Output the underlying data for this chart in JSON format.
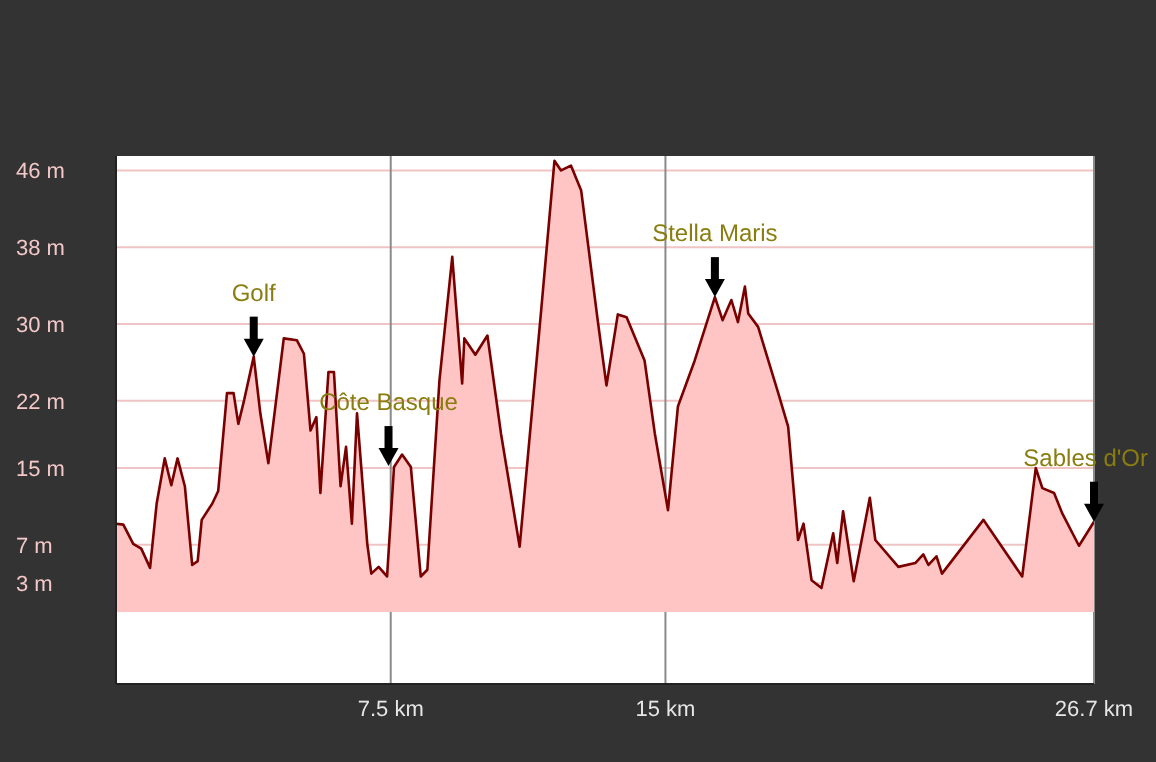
{
  "chart_data": {
    "type": "area",
    "xlim": [
      0,
      26.7
    ],
    "ylim": [
      -7.5,
      47.5
    ],
    "xticks": [
      {
        "value": 7.5,
        "label": "7.5 km"
      },
      {
        "value": 15,
        "label": "15 km"
      },
      {
        "value": 26.7,
        "label": "26.7 km"
      }
    ],
    "yticks": [
      {
        "value": 46,
        "label": "46 m"
      },
      {
        "value": 38,
        "label": "38 m"
      },
      {
        "value": 30,
        "label": "30 m"
      },
      {
        "value": 22,
        "label": "22 m"
      },
      {
        "value": 15,
        "label": "15 m"
      },
      {
        "value": 7,
        "label": "7 m"
      },
      {
        "value": 3,
        "label": "3 m"
      }
    ],
    "grid": true,
    "x": [
      0,
      0.2,
      0.47,
      0.69,
      0.93,
      1.11,
      1.33,
      1.51,
      1.68,
      1.88,
      2.08,
      2.23,
      2.34,
      2.63,
      2.79,
      3.03,
      3.21,
      3.34,
      3.5,
      3.76,
      3.94,
      4.16,
      4.58,
      4.94,
      5.13,
      5.31,
      5.47,
      5.58,
      5.8,
      5.95,
      6.13,
      6.28,
      6.44,
      6.58,
      6.86,
      6.97,
      7.17,
      7.4,
      7.59,
      7.81,
      8.05,
      8.32,
      8.5,
      8.83,
      9.18,
      9.45,
      9.51,
      9.81,
      10.14,
      10.51,
      11.02,
      11.6,
      11.97,
      12.15,
      12.42,
      12.7,
      13.15,
      13.39,
      13.7,
      13.94,
      14.43,
      14.71,
      15.07,
      15.34,
      15.8,
      16.35,
      16.56,
      16.8,
      16.98,
      17.17,
      17.26,
      17.53,
      18.08,
      18.35,
      18.62,
      18.77,
      18.99,
      19.26,
      19.58,
      19.69,
      19.85,
      20.14,
      20.58,
      20.73,
      21.36,
      21.82,
      22.04,
      22.18,
      22.4,
      22.55,
      23.68,
      24.74,
      25.11,
      25.29,
      25.61,
      25.83,
      26.29,
      26.7
    ],
    "series": [
      {
        "color": "#7a0000",
        "values": [
          9.2,
          9.1,
          7.1,
          6.6,
          4.6,
          11.3,
          16,
          13.2,
          16,
          13.1,
          4.9,
          5.3,
          9.6,
          11.3,
          12.6,
          22.8,
          22.8,
          19.6,
          22.1,
          26.6,
          20.7,
          15.5,
          28.5,
          28.3,
          26.9,
          18.9,
          20.3,
          12.4,
          25,
          25,
          13.1,
          17.2,
          9.2,
          20.7,
          7.1,
          4,
          4.7,
          3.7,
          15.1,
          16.4,
          15.1,
          3.7,
          4.4,
          24.1,
          37,
          23.8,
          28.5,
          26.8,
          28.8,
          18.6,
          6.8,
          31.1,
          47,
          46,
          46.5,
          43.9,
          30.4,
          23.6,
          31,
          30.7,
          26.2,
          18.6,
          10.6,
          21.4,
          26.2,
          32.8,
          30.4,
          32.5,
          30.2,
          33.9,
          31.1,
          29.7,
          22.8,
          19.3,
          7.5,
          9.2,
          3.3,
          2.5,
          8.2,
          5.1,
          10.5,
          3.2,
          11.9,
          7.5,
          4.7,
          5.1,
          6,
          4.9,
          5.8,
          4,
          9.6,
          3.7,
          15,
          12.9,
          12.4,
          10.3,
          6.9,
          9.4
        ]
      }
    ],
    "annotations": [
      {
        "text": "Golf",
        "x": 3.76,
        "y": 26.6
      },
      {
        "text": "Côte Basque",
        "x": 7.44,
        "y": 15.2
      },
      {
        "text": "Stella Maris",
        "x": 16.35,
        "y": 32.8
      },
      {
        "text": "Sables d'Or",
        "x": 26.7,
        "y": 9.4
      }
    ]
  }
}
